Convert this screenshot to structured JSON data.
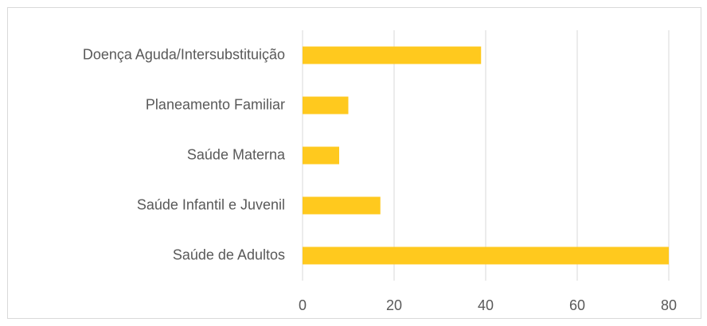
{
  "chart_data": {
    "type": "barh",
    "categories": [
      "Doença Aguda/Intersubstituição",
      "Planeamento Familiar",
      "Saúde Materna",
      "Saúde Infantil e Juvenil",
      "Saúde de Adultos"
    ],
    "values": [
      39,
      10,
      8,
      17,
      80
    ],
    "color": "#ffc91e",
    "xlim": [
      0,
      80
    ],
    "xticks": [
      0,
      20,
      40,
      60,
      80
    ],
    "grid": true
  }
}
